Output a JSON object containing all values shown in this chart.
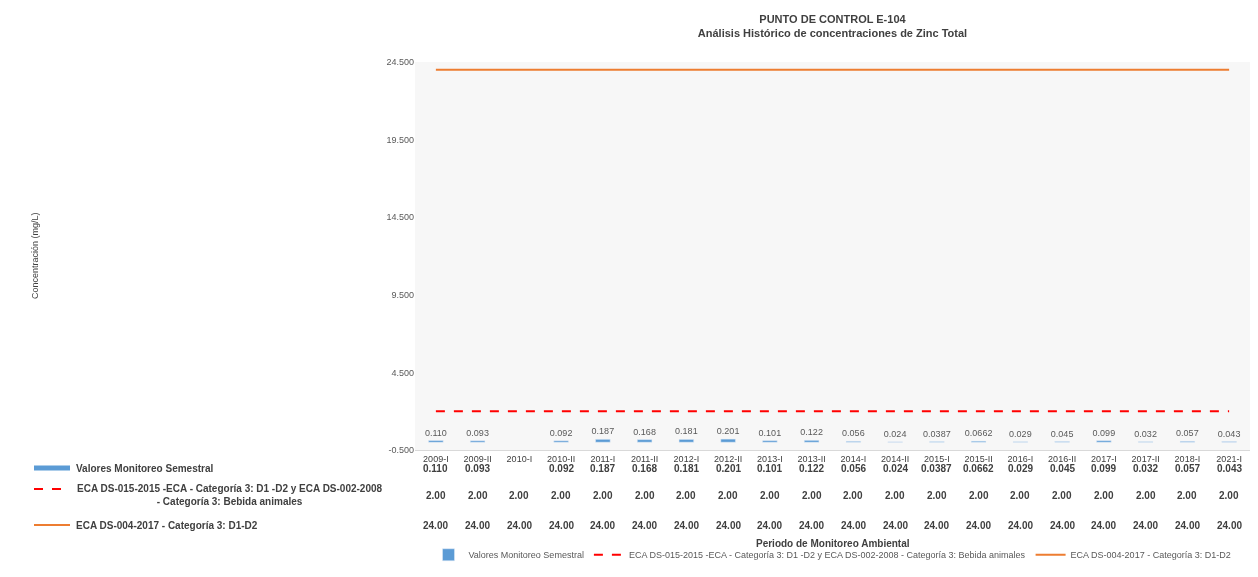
{
  "chart_data": {
    "type": "bar",
    "title": "PUNTO DE CONTROL E-104",
    "subtitle": "Análisis Histórico de concentraciones de Zinc Total",
    "annotations": [
      "Periodo de Monitoreo Ambiental",
      "Concentración (mg/L)"
    ],
    "categories": [
      "2009-I",
      "2009-II",
      "2010-I",
      "2010-II",
      "2011-I",
      "2011-II",
      "2012-I",
      "2012-II",
      "2013-I",
      "2013-II",
      "2014-I",
      "2014-II",
      "2015-I",
      "2015-II",
      "2016-I",
      "2016-II",
      "2017-I",
      "2017-II",
      "2018-I",
      "2021-I"
    ],
    "series": [
      {
        "name": "Valores Monitoreo Semestral",
        "color": "#5b9bd5",
        "values": [
          0.11,
          0.093,
          null,
          0.092,
          0.187,
          0.168,
          0.181,
          0.201,
          0.101,
          0.122,
          0.056,
          0.024,
          0.0387,
          0.0662,
          0.029,
          0.045,
          0.099,
          0.032,
          0.057,
          0.043
        ],
        "value_labels": [
          "0.110",
          "0.093",
          null,
          "0.092",
          "0.187",
          "0.168",
          "0.181",
          "0.201",
          "0.101",
          "0.122",
          "0.056",
          "0.024",
          "0.0387",
          "0.0662",
          "0.029",
          "0.045",
          "0.099",
          "0.032",
          "0.057",
          "0.043"
        ]
      },
      {
        "name": "ECA DS-015-2015 -ECA - Categoría 3: D1 -D2 y ECA DS-002-2008 - Categoría 3: Bebida animales",
        "type": "line",
        "line_style": "dashed",
        "color": "#ff0000",
        "values": [
          2,
          2,
          2,
          2,
          2,
          2,
          2,
          2,
          2,
          2,
          2,
          2,
          2,
          2,
          2,
          2,
          2,
          2,
          2,
          2
        ],
        "value_labels": [
          "2.00",
          "2.00",
          "2.00",
          "2.00",
          "2.00",
          "2.00",
          "2.00",
          "2.00",
          "2.00",
          "2.00",
          "2.00",
          "2.00",
          "2.00",
          "2.00",
          "2.00",
          "2.00",
          "2.00",
          "2.00",
          "2.00",
          "2.00"
        ]
      },
      {
        "name": "ECA DS-004-2017 - Categoría 3: D1-D2",
        "type": "line",
        "line_style": "solid",
        "color": "#ed7d31",
        "values": [
          24,
          24,
          24,
          24,
          24,
          24,
          24,
          24,
          24,
          24,
          24,
          24,
          24,
          24,
          24,
          24,
          24,
          24,
          24,
          24
        ],
        "value_labels": [
          "24.00",
          "24.00",
          "24.00",
          "24.00",
          "24.00",
          "24.00",
          "24.00",
          "24.00",
          "24.00",
          "24.00",
          "24.00",
          "24.00",
          "24.00",
          "24.00",
          "24.00",
          "24.00",
          "24.00",
          "24.00",
          "24.00",
          "24.00"
        ]
      }
    ],
    "ylim": [
      -0.5,
      24.5
    ],
    "yticks": [
      {
        "value": -0.5,
        "label": "-0.500"
      },
      {
        "value": 4.5,
        "label": "4.500"
      },
      {
        "value": 9.5,
        "label": "9.500"
      },
      {
        "value": 14.5,
        "label": "14.500"
      },
      {
        "value": 19.5,
        "label": "19.500"
      },
      {
        "value": 24.5,
        "label": "24.500"
      }
    ],
    "grid": false,
    "legend": "bottom"
  }
}
